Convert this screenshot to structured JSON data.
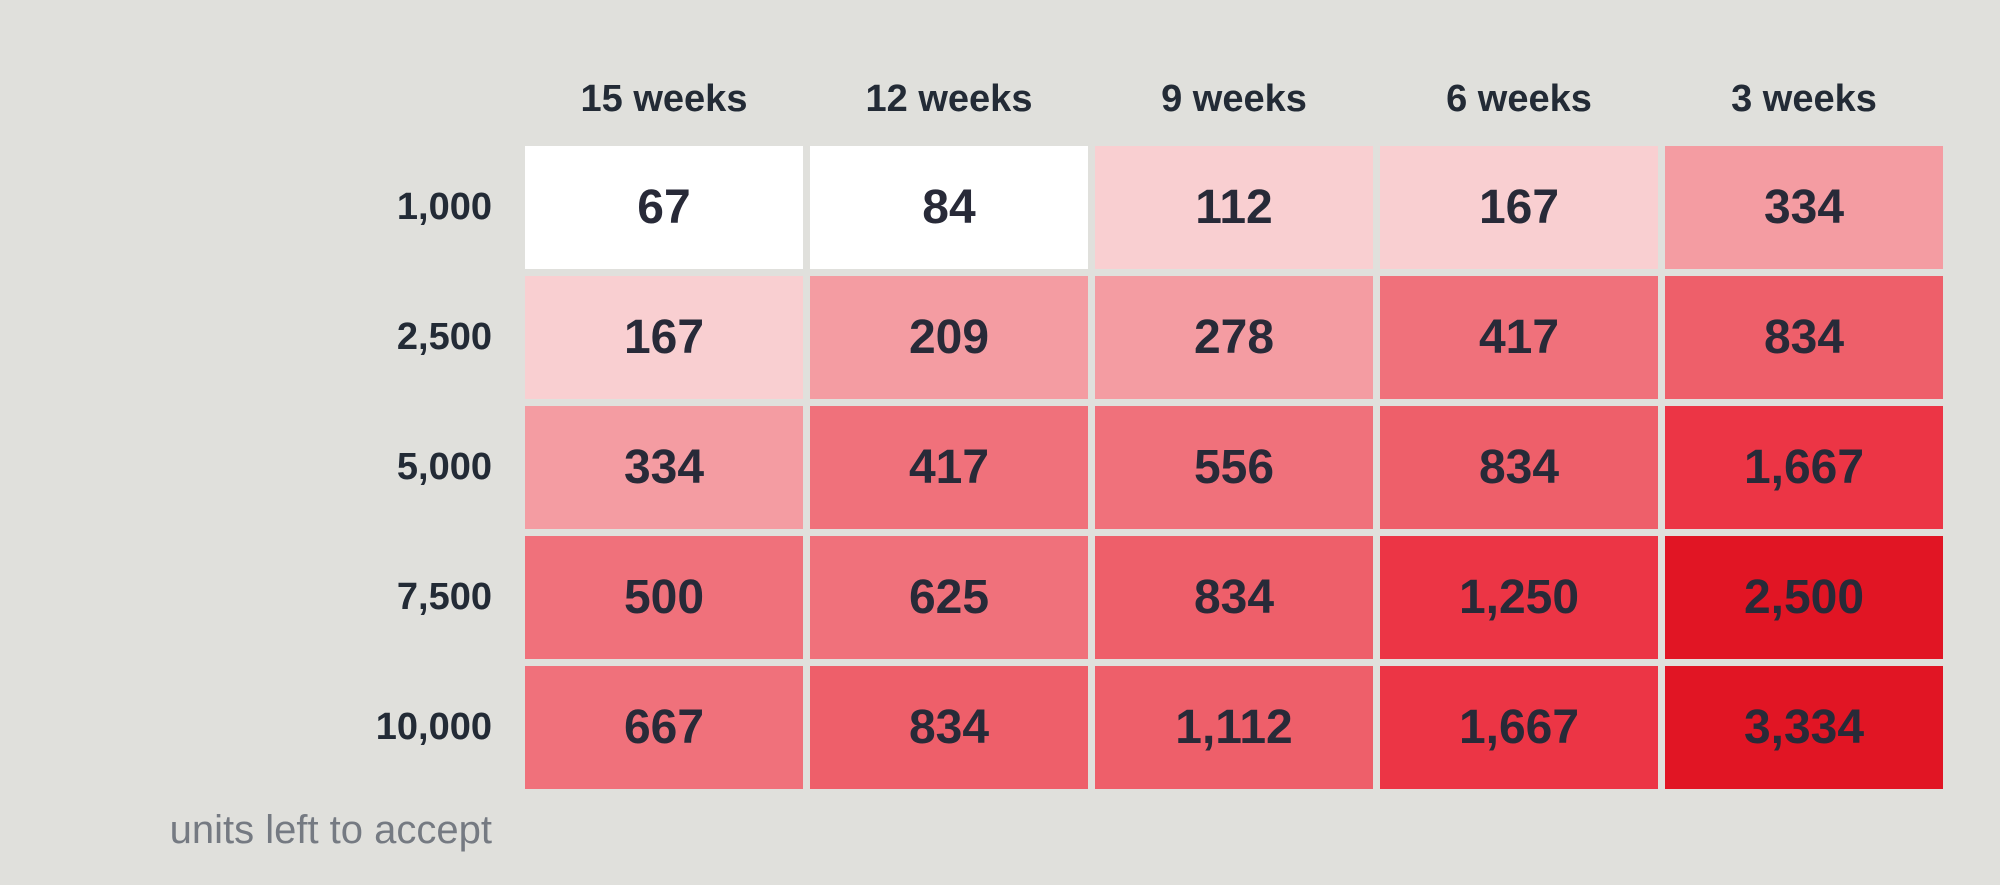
{
  "chart_data": {
    "type": "heatmap",
    "columns": [
      "15 weeks",
      "12 weeks",
      "9 weeks",
      "6 weeks",
      "3 weeks"
    ],
    "rows": [
      "1,000",
      "2,500",
      "5,000",
      "7,500",
      "10,000"
    ],
    "values": [
      [
        67,
        84,
        112,
        167,
        334
      ],
      [
        167,
        209,
        278,
        417,
        834
      ],
      [
        334,
        417,
        556,
        834,
        1667
      ],
      [
        500,
        625,
        834,
        1250,
        2500
      ],
      [
        667,
        834,
        1112,
        1667,
        3334
      ]
    ],
    "row_axis_label": "units left to accept",
    "color_scale": [
      {
        "max": 100,
        "color": "#ffffff"
      },
      {
        "max": 200,
        "color": "#f9cfd1"
      },
      {
        "max": 350,
        "color": "#f49ca2"
      },
      {
        "max": 700,
        "color": "#f0717b"
      },
      {
        "max": 1150,
        "color": "#ee5f6a"
      },
      {
        "max": 2000,
        "color": "#ec3545"
      },
      {
        "max": 100000,
        "color": "#e11524"
      }
    ]
  }
}
